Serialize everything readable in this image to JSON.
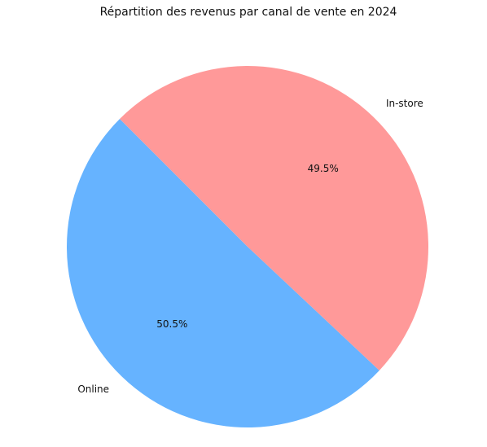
{
  "chart_data": {
    "type": "pie",
    "title": "Répartition des revenus par canal de vente en 2024",
    "slices": [
      {
        "label": "Online",
        "percent": 50.5,
        "percent_label": "50.5%",
        "color": "#66b3ff"
      },
      {
        "label": "In-store",
        "percent": 49.5,
        "percent_label": "49.5%",
        "color": "#ff9999"
      }
    ],
    "start_angle_deg": 135,
    "direction": "counterclockwise"
  }
}
